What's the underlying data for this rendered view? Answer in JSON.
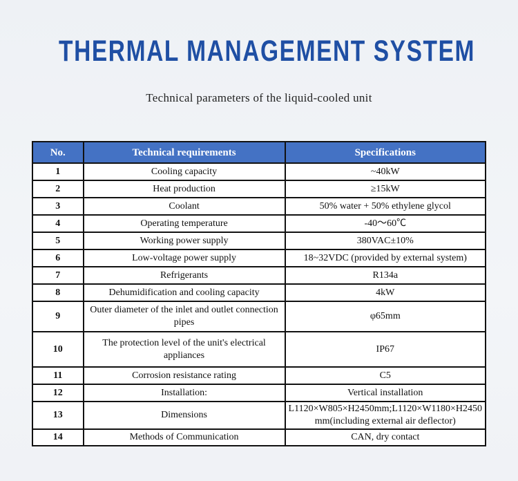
{
  "title": "THERMAL MANAGEMENT SYSTEM",
  "subtitle": "Technical parameters of the liquid-cooled unit",
  "colors": {
    "title": "#1f4fa4",
    "header_bg": "#4472c4"
  },
  "table": {
    "headers": [
      "No.",
      "Technical requirements",
      "Specifications"
    ],
    "rows": [
      {
        "no": "1",
        "req": "Cooling capacity",
        "spec": "~40kW"
      },
      {
        "no": "2",
        "req": "Heat production",
        "spec": "≥15kW"
      },
      {
        "no": "3",
        "req": "Coolant",
        "spec": "50% water + 50% ethylene glycol"
      },
      {
        "no": "4",
        "req": "Operating temperature",
        "spec": "-40～60℃"
      },
      {
        "no": "5",
        "req": "Working power supply",
        "spec": "380VAC±10%"
      },
      {
        "no": "6",
        "req": "Low-voltage power supply",
        "spec": "18~32VDC (provided by external system)"
      },
      {
        "no": "7",
        "req": "Refrigerants",
        "spec": "R134a"
      },
      {
        "no": "8",
        "req": "Dehumidification and cooling capacity",
        "spec": "4kW"
      },
      {
        "no": "9",
        "req": "Outer diameter of the inlet and outlet connection pipes",
        "spec": "φ65mm"
      },
      {
        "no": "10",
        "req": "The protection level of the unit's electrical appliances",
        "spec": "IP67"
      },
      {
        "no": "11",
        "req": "Corrosion resistance rating",
        "spec": "C5"
      },
      {
        "no": "12",
        "req": "Installation:",
        "spec": "Vertical installation"
      },
      {
        "no": "13",
        "req": "Dimensions",
        "spec": "L1120×W805×H2450mm;L1120×W1180×H2450 mm(including external air deflector)"
      },
      {
        "no": "14",
        "req": "Methods of Communication",
        "spec": "CAN, dry contact"
      }
    ]
  }
}
